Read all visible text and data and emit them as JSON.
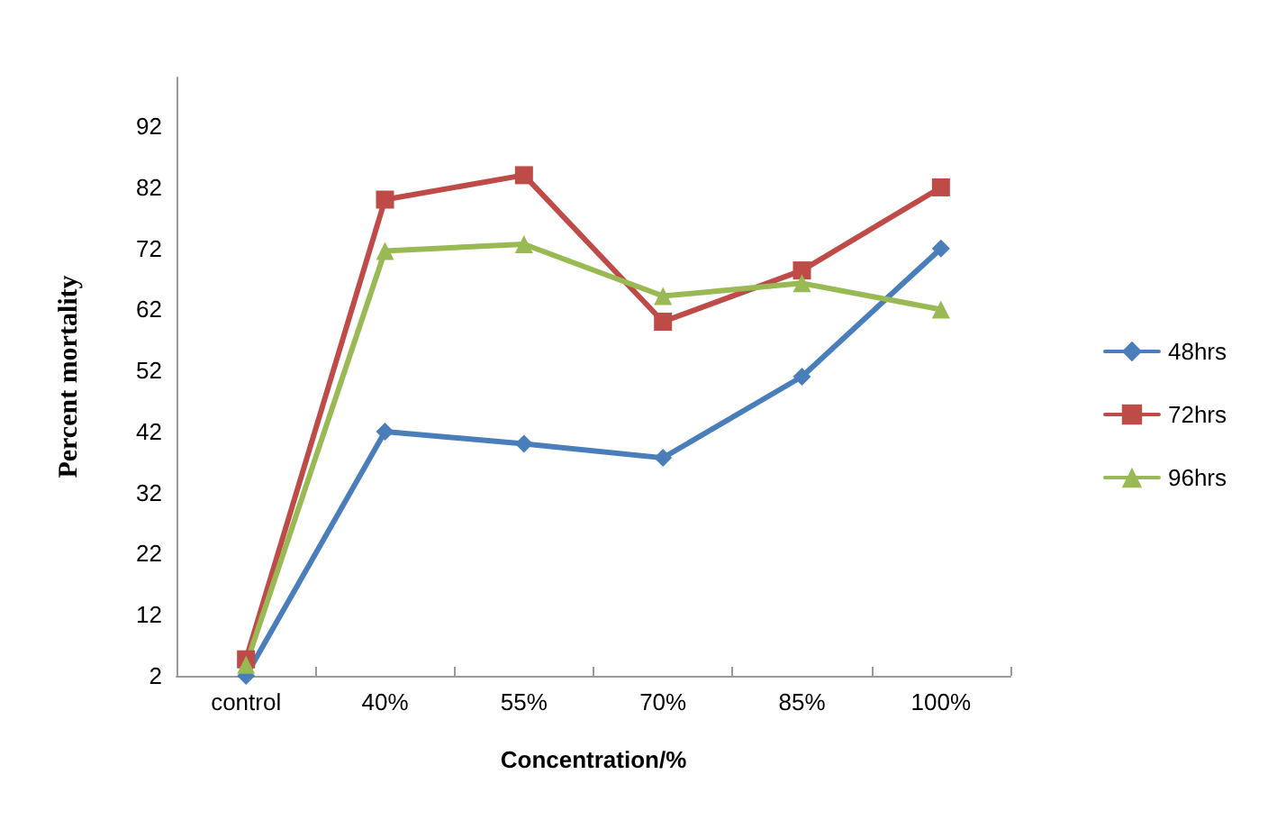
{
  "chart_data": {
    "type": "line",
    "xlabel": "Concentration/%",
    "ylabel": "Percent mortality",
    "categories": [
      "control",
      "40%",
      "55%",
      "70%",
      "85%",
      "100%"
    ],
    "series": [
      {
        "name": "48hrs",
        "color": "#4a7ebb",
        "marker": "diamond",
        "values": [
          2,
          42,
          40,
          37.7,
          51,
          72
        ]
      },
      {
        "name": "72hrs",
        "color": "#be4b48",
        "marker": "square",
        "values": [
          4.7,
          80,
          84,
          60,
          68.4,
          82
        ]
      },
      {
        "name": "96hrs",
        "color": "#98b954",
        "marker": "triangle",
        "values": [
          3.8,
          71.6,
          72.7,
          64.2,
          66.3,
          62
        ]
      }
    ],
    "ylim": [
      2,
      100
    ],
    "yticks": [
      2,
      12,
      22,
      32,
      42,
      52,
      62,
      72,
      82,
      92
    ],
    "grid": false,
    "legend": "right"
  }
}
